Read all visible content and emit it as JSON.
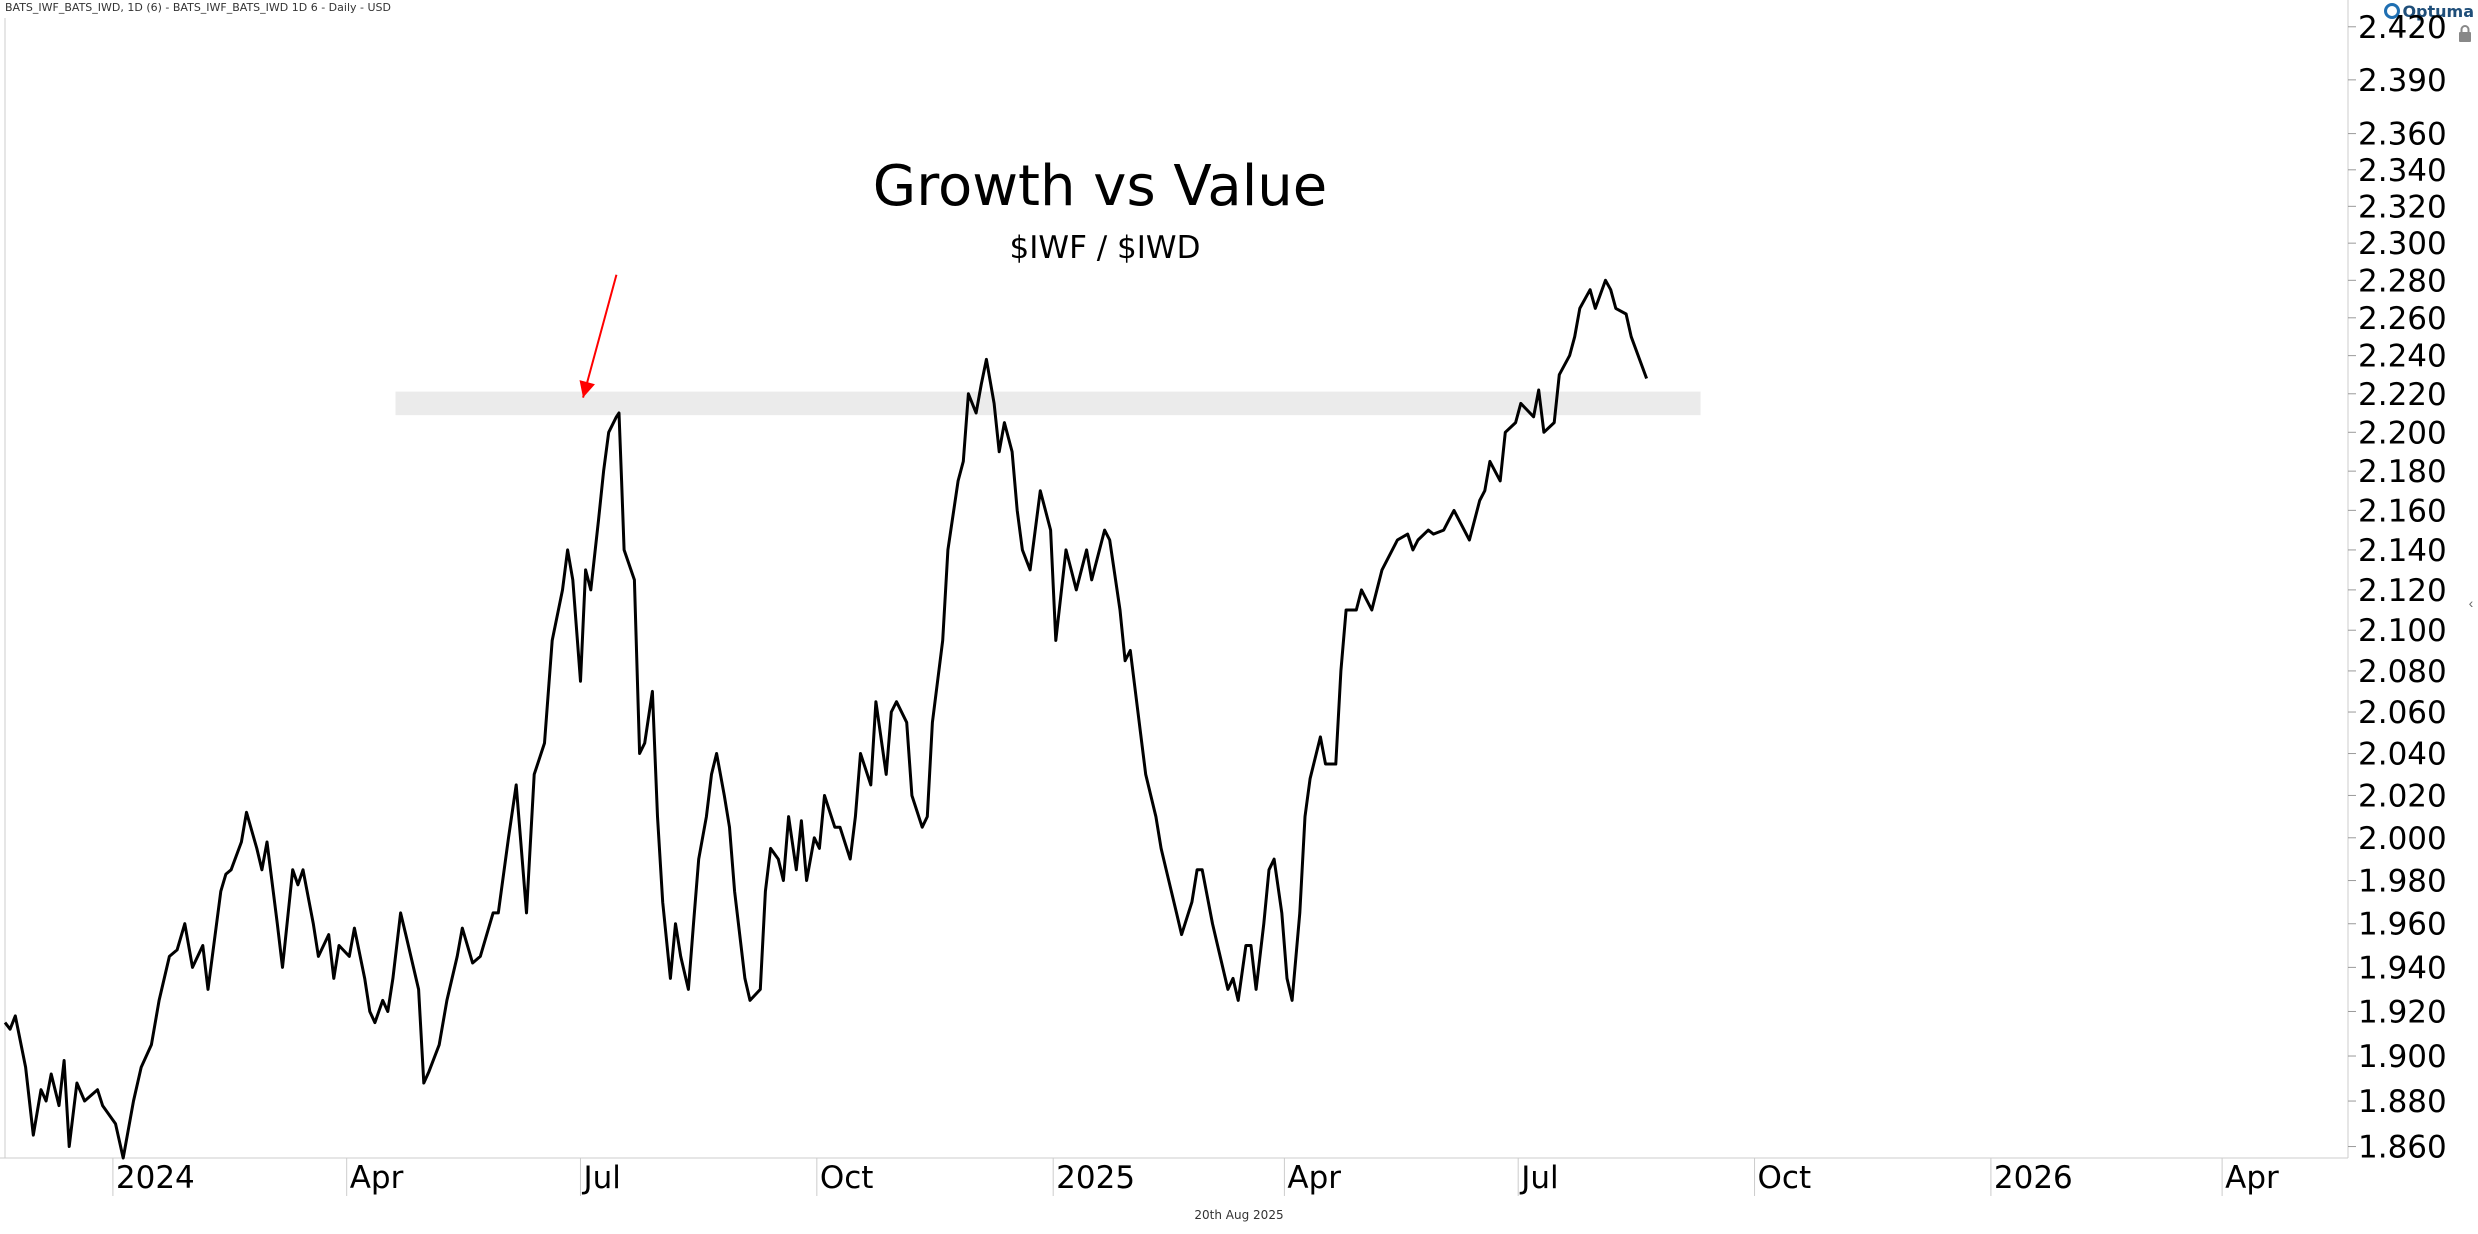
{
  "header": {
    "symbol_text": "BATS_IWF_BATS_IWD, 1D (6) - BATS_IWF_BATS_IWD  1D  6 - Daily - USD",
    "logo_text": "Optuma"
  },
  "footer": {
    "date_text": "20th Aug 2025"
  },
  "colors": {
    "line": "#000000",
    "arrow": "#ff0000",
    "band": "#ebebeb",
    "axis": "#cccccc"
  },
  "chart_data": {
    "type": "line",
    "title": "Growth vs Value",
    "subtitle": "$IWF / $IWD",
    "x_tick_labels": [
      {
        "date": "2024-01-01",
        "label": "2024"
      },
      {
        "date": "2024-04-01",
        "label": "Apr"
      },
      {
        "date": "2024-07-01",
        "label": "Jul"
      },
      {
        "date": "2024-10-01",
        "label": "Oct"
      },
      {
        "date": "2025-01-01",
        "label": "2025"
      },
      {
        "date": "2025-04-01",
        "label": "Apr"
      },
      {
        "date": "2025-07-01",
        "label": "Jul"
      },
      {
        "date": "2025-10-01",
        "label": "Oct"
      },
      {
        "date": "2026-01-01",
        "label": "2026"
      },
      {
        "date": "2026-04-01",
        "label": "Apr"
      }
    ],
    "xlim": [
      "2023-11-20",
      "2026-05-20"
    ],
    "y_tick_labels": [
      "2.420",
      "2.390",
      "2.360",
      "2.340",
      "2.320",
      "2.300",
      "2.280",
      "2.260",
      "2.240",
      "2.220",
      "2.200",
      "2.180",
      "2.160",
      "2.140",
      "2.120",
      "2.100",
      "2.080",
      "2.060",
      "2.040",
      "2.020",
      "2.000",
      "1.980",
      "1.960",
      "1.940",
      "1.920",
      "1.900",
      "1.880",
      "1.860"
    ],
    "ylim": [
      1.855,
      2.425
    ],
    "y_scale": "log",
    "grid": false,
    "resistance_band": {
      "from": "2024-04-20",
      "to": "2025-09-10",
      "low": 2.212,
      "high": 2.218
    },
    "annotation_arrow": {
      "from": {
        "date": "2024-07-15",
        "value": 2.283
      },
      "to": {
        "date": "2024-07-02",
        "value": 2.218
      }
    },
    "series": [
      {
        "points": [
          [
            "2023-11-20",
            1.915
          ],
          [
            "2023-11-22",
            1.912
          ],
          [
            "2023-11-24",
            1.918
          ],
          [
            "2023-11-28",
            1.895
          ],
          [
            "2023-12-01",
            1.865
          ],
          [
            "2023-12-04",
            1.885
          ],
          [
            "2023-12-06",
            1.88
          ],
          [
            "2023-12-08",
            1.892
          ],
          [
            "2023-12-11",
            1.878
          ],
          [
            "2023-12-13",
            1.898
          ],
          [
            "2023-12-15",
            1.86
          ],
          [
            "2023-12-18",
            1.888
          ],
          [
            "2023-12-21",
            1.88
          ],
          [
            "2023-12-26",
            1.885
          ],
          [
            "2023-12-28",
            1.878
          ],
          [
            "2024-01-02",
            1.87
          ],
          [
            "2024-01-05",
            1.85
          ],
          [
            "2024-01-09",
            1.88
          ],
          [
            "2024-01-12",
            1.895
          ],
          [
            "2024-01-16",
            1.905
          ],
          [
            "2024-01-19",
            1.925
          ],
          [
            "2024-01-23",
            1.945
          ],
          [
            "2024-01-26",
            1.948
          ],
          [
            "2024-01-29",
            1.96
          ],
          [
            "2024-02-01",
            1.94
          ],
          [
            "2024-02-05",
            1.95
          ],
          [
            "2024-02-07",
            1.93
          ],
          [
            "2024-02-12",
            1.975
          ],
          [
            "2024-02-14",
            1.983
          ],
          [
            "2024-02-16",
            1.985
          ],
          [
            "2024-02-20",
            1.998
          ],
          [
            "2024-02-22",
            2.012
          ],
          [
            "2024-02-26",
            1.995
          ],
          [
            "2024-02-28",
            1.985
          ],
          [
            "2024-03-01",
            1.998
          ],
          [
            "2024-03-05",
            1.96
          ],
          [
            "2024-03-07",
            1.94
          ],
          [
            "2024-03-11",
            1.985
          ],
          [
            "2024-03-13",
            1.978
          ],
          [
            "2024-03-15",
            1.985
          ],
          [
            "2024-03-19",
            1.96
          ],
          [
            "2024-03-21",
            1.945
          ],
          [
            "2024-03-25",
            1.955
          ],
          [
            "2024-03-27",
            1.935
          ],
          [
            "2024-03-29",
            1.95
          ],
          [
            "2024-04-02",
            1.945
          ],
          [
            "2024-04-04",
            1.958
          ],
          [
            "2024-04-08",
            1.935
          ],
          [
            "2024-04-10",
            1.92
          ],
          [
            "2024-04-12",
            1.915
          ],
          [
            "2024-04-15",
            1.925
          ],
          [
            "2024-04-17",
            1.92
          ],
          [
            "2024-04-19",
            1.935
          ],
          [
            "2024-04-22",
            1.965
          ],
          [
            "2024-04-24",
            1.955
          ],
          [
            "2024-04-26",
            1.945
          ],
          [
            "2024-04-29",
            1.93
          ],
          [
            "2024-05-01",
            1.888
          ],
          [
            "2024-05-03",
            1.893
          ],
          [
            "2024-05-07",
            1.905
          ],
          [
            "2024-05-10",
            1.925
          ],
          [
            "2024-05-14",
            1.945
          ],
          [
            "2024-05-16",
            1.958
          ],
          [
            "2024-05-20",
            1.942
          ],
          [
            "2024-05-23",
            1.945
          ],
          [
            "2024-05-28",
            1.965
          ],
          [
            "2024-05-30",
            1.965
          ],
          [
            "2024-06-03",
            2.0
          ],
          [
            "2024-06-06",
            2.025
          ],
          [
            "2024-06-10",
            1.965
          ],
          [
            "2024-06-13",
            2.03
          ],
          [
            "2024-06-17",
            2.045
          ],
          [
            "2024-06-20",
            2.095
          ],
          [
            "2024-06-24",
            2.12
          ],
          [
            "2024-06-26",
            2.14
          ],
          [
            "2024-06-28",
            2.125
          ],
          [
            "2024-07-01",
            2.075
          ],
          [
            "2024-07-03",
            2.13
          ],
          [
            "2024-07-05",
            2.12
          ],
          [
            "2024-07-08",
            2.155
          ],
          [
            "2024-07-10",
            2.18
          ],
          [
            "2024-07-12",
            2.2
          ],
          [
            "2024-07-15",
            2.208
          ],
          [
            "2024-07-16",
            2.21
          ],
          [
            "2024-07-17",
            2.175
          ],
          [
            "2024-07-18",
            2.14
          ],
          [
            "2024-07-22",
            2.125
          ],
          [
            "2024-07-24",
            2.04
          ],
          [
            "2024-07-26",
            2.045
          ],
          [
            "2024-07-29",
            2.07
          ],
          [
            "2024-07-31",
            2.01
          ],
          [
            "2024-08-02",
            1.97
          ],
          [
            "2024-08-05",
            1.935
          ],
          [
            "2024-08-07",
            1.96
          ],
          [
            "2024-08-09",
            1.945
          ],
          [
            "2024-08-12",
            1.93
          ],
          [
            "2024-08-14",
            1.96
          ],
          [
            "2024-08-16",
            1.99
          ],
          [
            "2024-08-19",
            2.01
          ],
          [
            "2024-08-21",
            2.03
          ],
          [
            "2024-08-23",
            2.04
          ],
          [
            "2024-08-26",
            2.02
          ],
          [
            "2024-08-28",
            2.005
          ],
          [
            "2024-08-30",
            1.975
          ],
          [
            "2024-09-03",
            1.935
          ],
          [
            "2024-09-05",
            1.925
          ],
          [
            "2024-09-09",
            1.93
          ],
          [
            "2024-09-11",
            1.975
          ],
          [
            "2024-09-13",
            1.995
          ],
          [
            "2024-09-16",
            1.99
          ],
          [
            "2024-09-18",
            1.98
          ],
          [
            "2024-09-20",
            2.01
          ],
          [
            "2024-09-23",
            1.985
          ],
          [
            "2024-09-25",
            2.008
          ],
          [
            "2024-09-27",
            1.98
          ],
          [
            "2024-09-30",
            2.0
          ],
          [
            "2024-10-02",
            1.995
          ],
          [
            "2024-10-04",
            2.02
          ],
          [
            "2024-10-08",
            2.005
          ],
          [
            "2024-10-10",
            2.005
          ],
          [
            "2024-10-14",
            1.99
          ],
          [
            "2024-10-16",
            2.01
          ],
          [
            "2024-10-18",
            2.04
          ],
          [
            "2024-10-22",
            2.025
          ],
          [
            "2024-10-24",
            2.065
          ],
          [
            "2024-10-28",
            2.03
          ],
          [
            "2024-10-30",
            2.06
          ],
          [
            "2024-11-01",
            2.065
          ],
          [
            "2024-11-05",
            2.055
          ],
          [
            "2024-11-07",
            2.02
          ],
          [
            "2024-11-11",
            2.005
          ],
          [
            "2024-11-13",
            2.01
          ],
          [
            "2024-11-15",
            2.055
          ],
          [
            "2024-11-19",
            2.095
          ],
          [
            "2024-11-21",
            2.14
          ],
          [
            "2024-11-25",
            2.175
          ],
          [
            "2024-11-27",
            2.185
          ],
          [
            "2024-11-29",
            2.22
          ],
          [
            "2024-12-02",
            2.21
          ],
          [
            "2024-12-04",
            2.225
          ],
          [
            "2024-12-06",
            2.238
          ],
          [
            "2024-12-09",
            2.215
          ],
          [
            "2024-12-11",
            2.19
          ],
          [
            "2024-12-13",
            2.205
          ],
          [
            "2024-12-16",
            2.19
          ],
          [
            "2024-12-18",
            2.16
          ],
          [
            "2024-12-20",
            2.14
          ],
          [
            "2024-12-23",
            2.13
          ],
          [
            "2024-12-27",
            2.17
          ],
          [
            "2024-12-31",
            2.15
          ],
          [
            "2025-01-02",
            2.095
          ],
          [
            "2025-01-06",
            2.14
          ],
          [
            "2025-01-08",
            2.13
          ],
          [
            "2025-01-10",
            2.12
          ],
          [
            "2025-01-14",
            2.14
          ],
          [
            "2025-01-16",
            2.125
          ],
          [
            "2025-01-21",
            2.15
          ],
          [
            "2025-01-23",
            2.145
          ],
          [
            "2025-01-27",
            2.11
          ],
          [
            "2025-01-29",
            2.085
          ],
          [
            "2025-01-31",
            2.09
          ],
          [
            "2025-02-04",
            2.05
          ],
          [
            "2025-02-06",
            2.03
          ],
          [
            "2025-02-10",
            2.01
          ],
          [
            "2025-02-12",
            1.995
          ],
          [
            "2025-02-14",
            1.985
          ],
          [
            "2025-02-18",
            1.965
          ],
          [
            "2025-02-20",
            1.955
          ],
          [
            "2025-02-24",
            1.97
          ],
          [
            "2025-02-26",
            1.985
          ],
          [
            "2025-02-28",
            1.985
          ],
          [
            "2025-03-04",
            1.96
          ],
          [
            "2025-03-06",
            1.95
          ],
          [
            "2025-03-10",
            1.93
          ],
          [
            "2025-03-12",
            1.935
          ],
          [
            "2025-03-14",
            1.925
          ],
          [
            "2025-03-17",
            1.95
          ],
          [
            "2025-03-19",
            1.95
          ],
          [
            "2025-03-21",
            1.93
          ],
          [
            "2025-03-24",
            1.96
          ],
          [
            "2025-03-26",
            1.985
          ],
          [
            "2025-03-28",
            1.99
          ],
          [
            "2025-03-31",
            1.965
          ],
          [
            "2025-04-02",
            1.935
          ],
          [
            "2025-04-04",
            1.925
          ],
          [
            "2025-04-07",
            1.965
          ],
          [
            "2025-04-09",
            2.01
          ],
          [
            "2025-04-11",
            2.028
          ],
          [
            "2025-04-15",
            2.048
          ],
          [
            "2025-04-17",
            2.035
          ],
          [
            "2025-04-21",
            2.035
          ],
          [
            "2025-04-23",
            2.08
          ],
          [
            "2025-04-25",
            2.11
          ],
          [
            "2025-04-29",
            2.11
          ],
          [
            "2025-05-01",
            2.12
          ],
          [
            "2025-05-05",
            2.11
          ],
          [
            "2025-05-07",
            2.12
          ],
          [
            "2025-05-09",
            2.13
          ],
          [
            "2025-05-13",
            2.14
          ],
          [
            "2025-05-15",
            2.145
          ],
          [
            "2025-05-19",
            2.148
          ],
          [
            "2025-05-21",
            2.14
          ],
          [
            "2025-05-23",
            2.145
          ],
          [
            "2025-05-27",
            2.15
          ],
          [
            "2025-05-29",
            2.148
          ],
          [
            "2025-06-02",
            2.15
          ],
          [
            "2025-06-04",
            2.155
          ],
          [
            "2025-06-06",
            2.16
          ],
          [
            "2025-06-10",
            2.15
          ],
          [
            "2025-06-12",
            2.145
          ],
          [
            "2025-06-16",
            2.165
          ],
          [
            "2025-06-18",
            2.17
          ],
          [
            "2025-06-20",
            2.185
          ],
          [
            "2025-06-24",
            2.175
          ],
          [
            "2025-06-26",
            2.2
          ],
          [
            "2025-06-30",
            2.205
          ],
          [
            "2025-07-02",
            2.215
          ],
          [
            "2025-07-07",
            2.208
          ],
          [
            "2025-07-09",
            2.222
          ],
          [
            "2025-07-11",
            2.2
          ],
          [
            "2025-07-15",
            2.205
          ],
          [
            "2025-07-17",
            2.23
          ],
          [
            "2025-07-21",
            2.24
          ],
          [
            "2025-07-23",
            2.25
          ],
          [
            "2025-07-25",
            2.265
          ],
          [
            "2025-07-29",
            2.275
          ],
          [
            "2025-07-31",
            2.265
          ],
          [
            "2025-08-04",
            2.28
          ],
          [
            "2025-08-06",
            2.275
          ],
          [
            "2025-08-08",
            2.265
          ],
          [
            "2025-08-12",
            2.262
          ],
          [
            "2025-08-14",
            2.25
          ],
          [
            "2025-08-20",
            2.228
          ]
        ]
      }
    ]
  }
}
